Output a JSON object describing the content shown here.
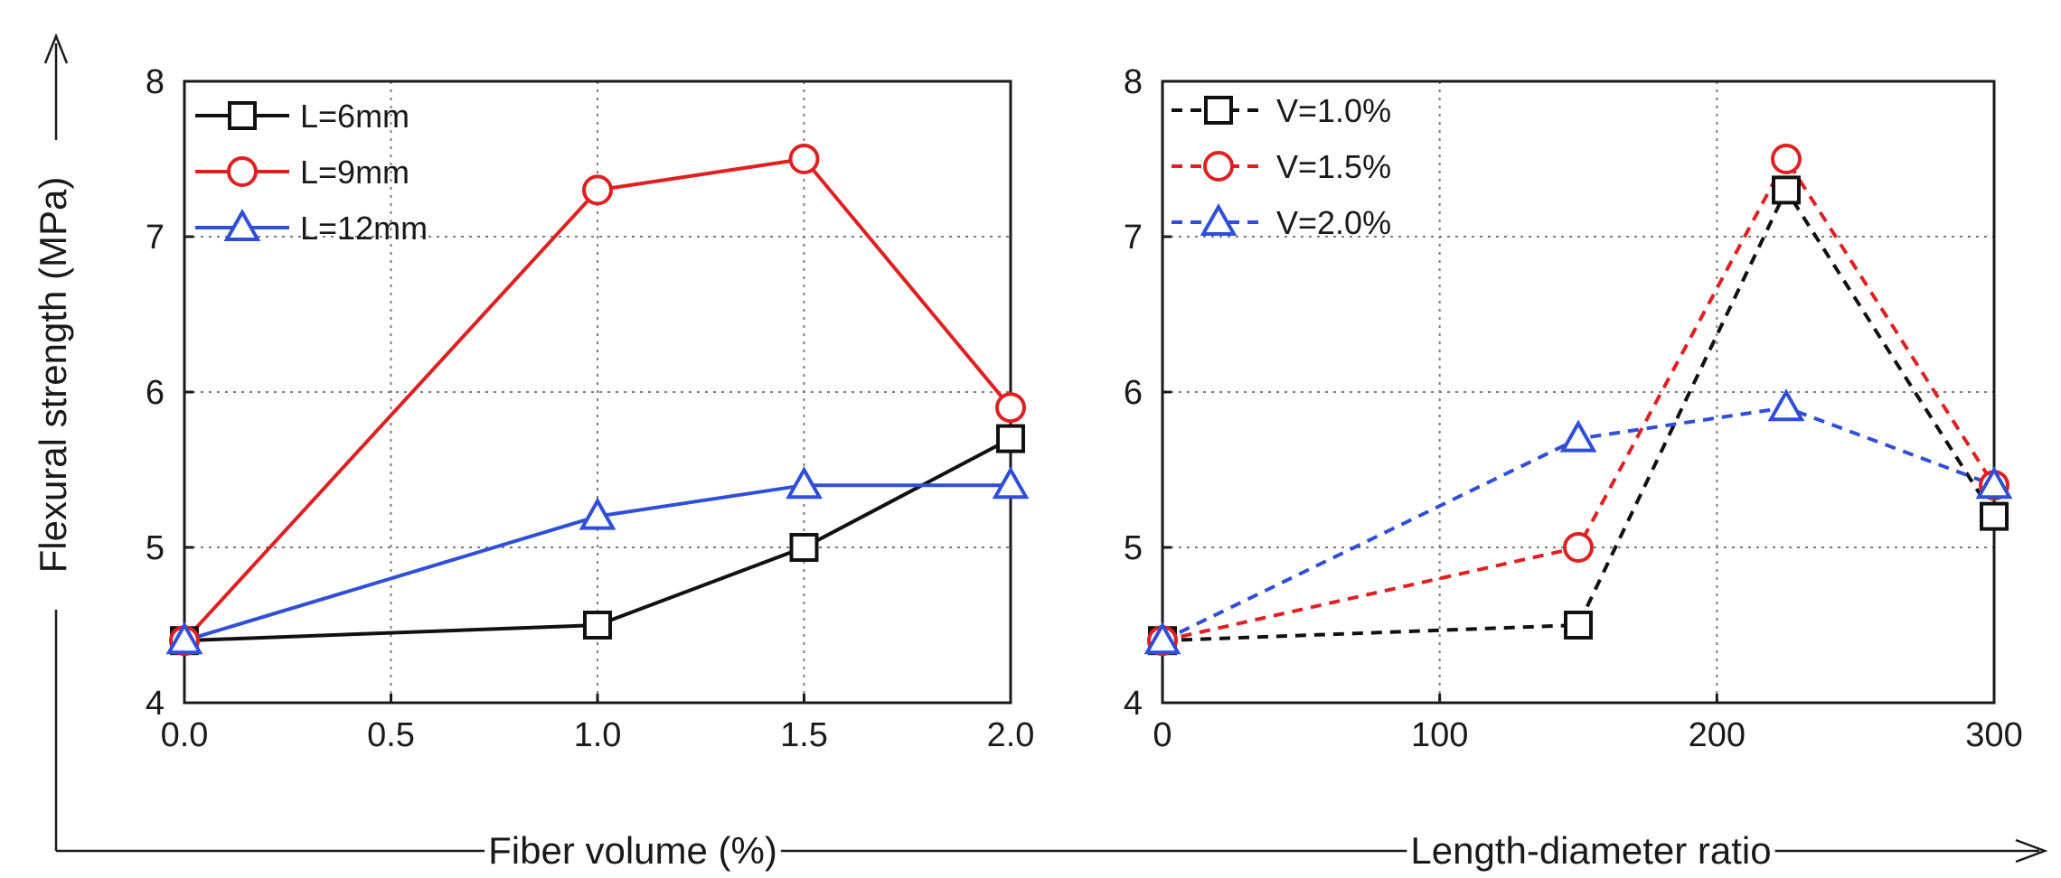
{
  "colors": {
    "black_series": "#111111",
    "red_series": "#e02020",
    "blue_series": "#2f4fd8"
  },
  "shared": {
    "ylabel": "Flexural strength (MPa)"
  },
  "chart_data": [
    {
      "type": "line",
      "xlabel": "Fiber volume (%)",
      "ylabel": "Flexural strength (MPa)",
      "xlim": [
        0,
        2.0
      ],
      "ylim": [
        4,
        8
      ],
      "xticks": [
        "0.0",
        "0.5",
        "1.0",
        "1.5",
        "2.0"
      ],
      "yticks": [
        "4",
        "5",
        "6",
        "7",
        "8"
      ],
      "grid": true,
      "legend_position": "top-left",
      "line_style": "solid",
      "x": [
        0,
        1.0,
        1.5,
        2.0
      ],
      "series": [
        {
          "name": "L=6mm",
          "marker": "square",
          "color": "#111111",
          "values": [
            4.4,
            4.5,
            5.0,
            5.7
          ]
        },
        {
          "name": "L=9mm",
          "marker": "circle",
          "color": "#e02020",
          "values": [
            4.4,
            7.3,
            7.5,
            5.9
          ]
        },
        {
          "name": "L=12mm",
          "marker": "triangle",
          "color": "#2f4fd8",
          "values": [
            4.4,
            5.2,
            5.4,
            5.4
          ]
        }
      ]
    },
    {
      "type": "line",
      "xlabel": "Length-diameter ratio",
      "ylabel": "Flexural strength (MPa)",
      "xlim": [
        0,
        300
      ],
      "ylim": [
        4,
        8
      ],
      "xticks": [
        "0",
        "100",
        "200",
        "300"
      ],
      "yticks": [
        "4",
        "5",
        "6",
        "7",
        "8"
      ],
      "grid": true,
      "legend_position": "top-left",
      "line_style": "dashed",
      "x": [
        0,
        150,
        225,
        300
      ],
      "series": [
        {
          "name": "V=1.0%",
          "marker": "square",
          "color": "#111111",
          "values": [
            4.4,
            4.5,
            7.3,
            5.2
          ]
        },
        {
          "name": "V=1.5%",
          "marker": "circle",
          "color": "#e02020",
          "values": [
            4.4,
            5.0,
            7.5,
            5.4
          ]
        },
        {
          "name": "V=2.0%",
          "marker": "triangle",
          "color": "#2f4fd8",
          "values": [
            4.4,
            5.7,
            5.9,
            5.4
          ]
        }
      ]
    }
  ]
}
